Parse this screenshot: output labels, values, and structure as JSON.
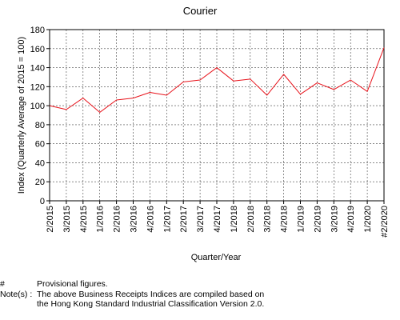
{
  "chart_data": {
    "type": "line",
    "title": "Courier",
    "xlabel": "Quarter/Year",
    "ylabel": "Index (Quarterly Average of 2015 = 100)",
    "ylim": [
      0,
      180
    ],
    "yticks": [
      0,
      20,
      40,
      60,
      80,
      100,
      120,
      140,
      160,
      180
    ],
    "grid": true,
    "categories": [
      "2/2015",
      "3/2015",
      "4/2015",
      "1/2016",
      "2/2016",
      "3/2016",
      "4/2016",
      "1/2017",
      "2/2017",
      "3/2017",
      "4/2017",
      "1/2018",
      "2/2018",
      "3/2018",
      "4/2018",
      "1/2019",
      "2/2019",
      "3/2019",
      "4/2019",
      "1/2020",
      "#2/2020"
    ],
    "x_tick_labels": [
      "2/2015",
      "3/2015",
      "4/2015",
      "1/2016",
      "2/2016",
      "3/2016",
      "4/2016",
      "1/2017",
      "2/2017",
      "3/2017",
      "4/2017",
      "1/2018",
      "2/2018",
      "3/2018",
      "4/2018",
      "1/2019",
      "2/2019",
      "3/2019",
      "4/2019",
      "1/2020",
      "#2/2020"
    ],
    "series": [
      {
        "color": "#e8141c",
        "values": [
          100,
          96,
          108,
          93,
          106,
          108,
          114,
          111,
          125,
          127,
          140,
          126,
          128,
          111,
          133,
          112,
          124,
          117,
          127,
          115,
          161
        ]
      }
    ]
  },
  "notes": [
    {
      "key": "#",
      "text": "Provisional figures."
    },
    {
      "key": "Note(s) :",
      "text": "The above Business Receipts Indices are compiled based on\nthe Hong Kong Standard Industrial Classification Version 2.0."
    }
  ]
}
